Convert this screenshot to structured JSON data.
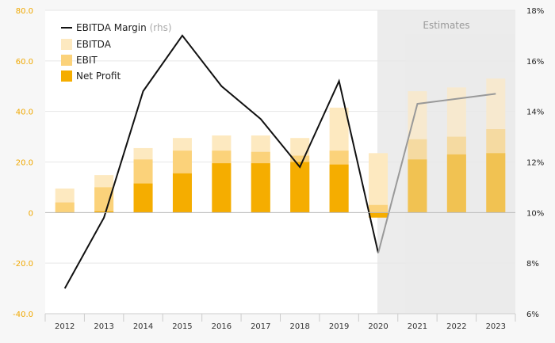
{
  "chart_data": {
    "type": "bar",
    "categories": [
      "2012",
      "2013",
      "2014",
      "2015",
      "2016",
      "2017",
      "2018",
      "2019",
      "2020",
      "2021",
      "2022",
      "2023"
    ],
    "series": [
      {
        "name": "EBITDA",
        "values": [
          9.5,
          14.8,
          25.5,
          29.5,
          30.5,
          30.5,
          29.5,
          41.5,
          23.5,
          48.0,
          49.5,
          53.0
        ],
        "color": "#fde9c0"
      },
      {
        "name": "EBIT",
        "values": [
          4.0,
          10.0,
          21.0,
          24.5,
          24.5,
          24.0,
          22.5,
          24.5,
          3.0,
          29.0,
          30.0,
          33.0
        ],
        "color": "#fbd27a"
      },
      {
        "name": "Net Profit",
        "values": [
          0.0,
          0.5,
          11.5,
          15.5,
          19.5,
          19.5,
          20.0,
          19.0,
          -2.0,
          21.0,
          23.0,
          23.5
        ],
        "color": "#f5ad00"
      }
    ],
    "line": {
      "name": "EBITDA Margin",
      "name_suffix": "(rhs)",
      "values": [
        7.0,
        9.8,
        14.8,
        17.0,
        15.0,
        13.7,
        11.8,
        15.2,
        8.4,
        14.3,
        14.5,
        14.7
      ],
      "color": "#111111",
      "estimate_color": "#999999"
    },
    "ylim_left": [
      -40,
      80
    ],
    "ylim_right": [
      6,
      18
    ],
    "yticks_left": [
      "80.0",
      "60.0",
      "40.0",
      "20.0",
      "0",
      "-20.0",
      "-40.0"
    ],
    "yticks_right": [
      "18%",
      "16%",
      "14%",
      "12%",
      "10%",
      "8%",
      "6%"
    ],
    "estimates_label": "Estimates",
    "estimates_from": "2020",
    "legend_position": "top-left",
    "grid": true
  }
}
